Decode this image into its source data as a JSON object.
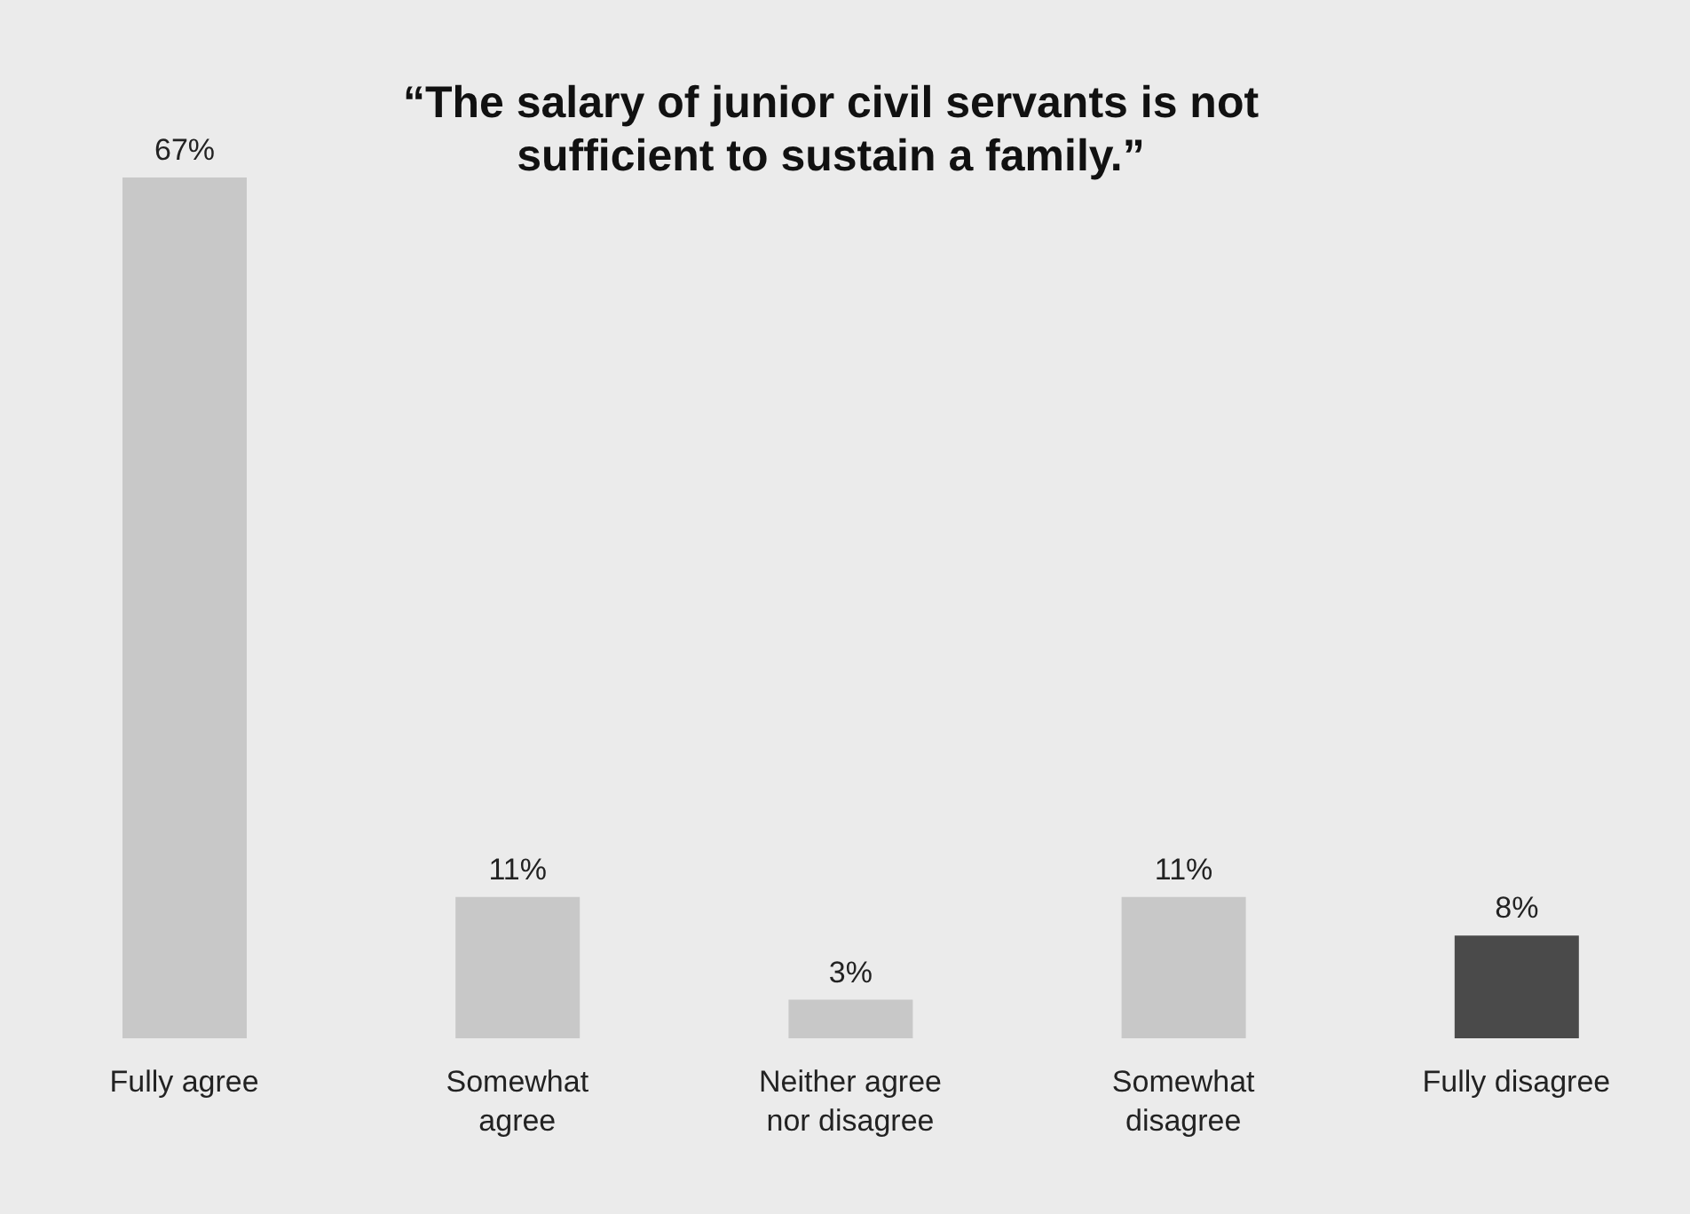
{
  "chart_data": {
    "type": "bar",
    "title": "“The salary of junior civil servants is not sufficient to sustain a family.”",
    "categories": [
      "Fully agree",
      "Somewhat agree",
      "Neither agree nor disagree",
      "Somewhat disagree",
      "Fully disagree"
    ],
    "values": [
      67,
      11,
      3,
      11,
      8
    ],
    "colors": [
      "#c8c8c8",
      "#c8c8c8",
      "#c8c8c8",
      "#c8c8c8",
      "#4a4a4a"
    ],
    "value_labels": [
      "67%",
      "11%",
      "3%",
      "11%",
      "8%"
    ],
    "grid": false,
    "legend": false
  }
}
